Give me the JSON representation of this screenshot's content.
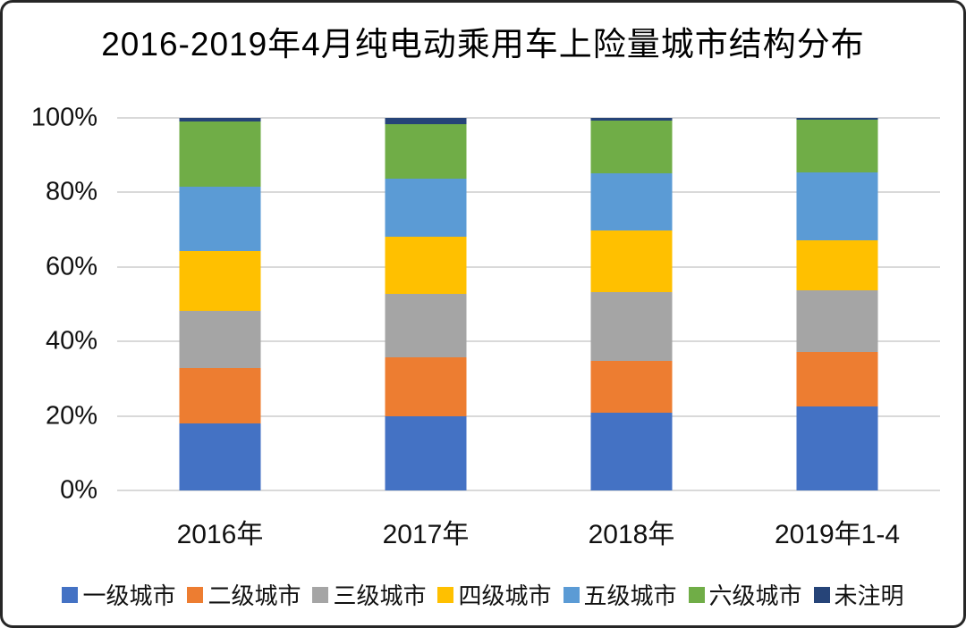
{
  "chart_data": {
    "type": "bar",
    "subtype": "stacked-100-percent",
    "title": "2016-2019年4月纯电动乘用车上险量城市结构分布",
    "categories": [
      "2016年",
      "2017年",
      "2018年",
      "2019年1-4"
    ],
    "series": [
      {
        "name": "一级城市",
        "color": "#4472C4",
        "values": [
          18.1,
          19.9,
          20.8,
          22.5
        ]
      },
      {
        "name": "二级城市",
        "color": "#ED7D31",
        "values": [
          14.7,
          15.8,
          14.0,
          14.7
        ]
      },
      {
        "name": "三级城市",
        "color": "#A5A5A5",
        "values": [
          15.3,
          17.1,
          18.4,
          16.5
        ]
      },
      {
        "name": "四级城市",
        "color": "#FFC000",
        "values": [
          16.2,
          15.2,
          16.7,
          13.5
        ]
      },
      {
        "name": "五级城市",
        "color": "#5B9BD5",
        "values": [
          17.2,
          15.7,
          15.3,
          18.3
        ]
      },
      {
        "name": "六级城市",
        "color": "#70AD47",
        "values": [
          17.5,
          14.6,
          14.2,
          14.0
        ]
      },
      {
        "name": "未注明",
        "color": "#264478",
        "values": [
          1.0,
          1.7,
          0.6,
          0.5
        ]
      }
    ],
    "y_axis": {
      "min": 0,
      "max": 100,
      "tick_values": [
        0,
        20,
        40,
        60,
        80,
        100
      ],
      "tick_labels": [
        "0%",
        "20%",
        "40%",
        "60%",
        "80%",
        "100%"
      ]
    },
    "grid": true,
    "gridline_color": "#d9d9d9",
    "legend_position": "bottom"
  }
}
